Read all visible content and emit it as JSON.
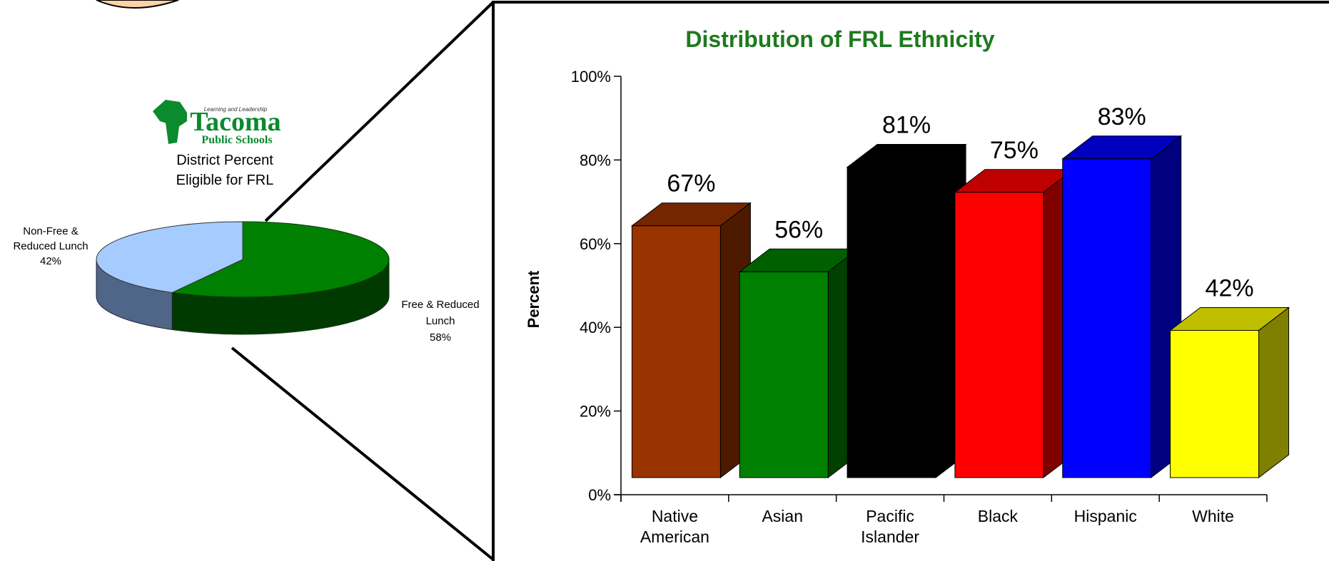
{
  "logo": {
    "tagline": "Learning and Leadership",
    "name": "Tacoma",
    "subtitle": "Public Schools",
    "caption_line1": "District Percent",
    "caption_line2": "Eligible for FRL"
  },
  "colors": {
    "pie_frl": "#008000",
    "pie_non_frl": "#a6cbff",
    "title": "#1e7a1e"
  },
  "pie_chart": {
    "type": "pie",
    "slices": [
      {
        "label_line1": "Non-Free &",
        "label_line2": "Reduced Lunch",
        "pct_label": "42%",
        "value": 42,
        "color": "#a6cbff"
      },
      {
        "label_line1": "Free & Reduced",
        "label_line2": "Lunch",
        "pct_label": "58%",
        "value": 58,
        "color": "#008000"
      }
    ]
  },
  "chart_data": {
    "type": "bar",
    "title": "Distribution of FRL Ethnicity",
    "ylabel": "Percent",
    "xlabel": "",
    "ylim": [
      0,
      100
    ],
    "yticks": [
      "0%",
      "20%",
      "40%",
      "60%",
      "80%",
      "100%"
    ],
    "categories": [
      {
        "line1": "Native",
        "line2": "American"
      },
      {
        "line1": "Asian",
        "line2": ""
      },
      {
        "line1": "Pacific",
        "line2": "Islander"
      },
      {
        "line1": "Black",
        "line2": ""
      },
      {
        "line1": "Hispanic",
        "line2": ""
      },
      {
        "line1": "White",
        "line2": ""
      }
    ],
    "values": [
      67,
      56,
      81,
      75,
      83,
      42
    ],
    "value_labels": [
      "67%",
      "56%",
      "81%",
      "75%",
      "83%",
      "42%"
    ],
    "bar_colors": [
      "#993300",
      "#008000",
      "#000000",
      "#ff0000",
      "#0000ff",
      "#ffff00"
    ]
  }
}
